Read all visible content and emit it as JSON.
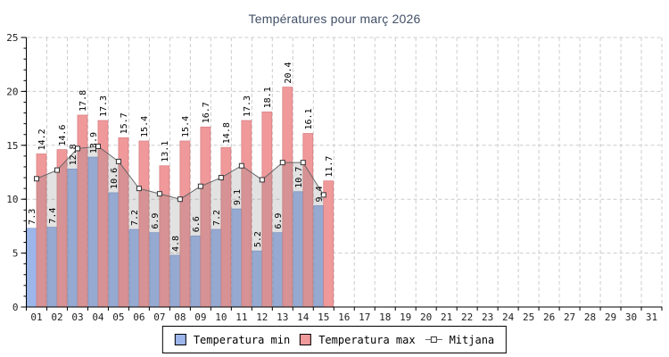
{
  "title": "Températures pour març 2026",
  "legend": {
    "min_label": "Temperatura min",
    "max_label": "Temperatura max",
    "mitjana_label": "Mitjana"
  },
  "colors": {
    "min_bar": "#9db6ea",
    "min_bar_border": "#7e9bd2",
    "max_bar": "#f0999b",
    "max_bar_border": "#d87f82",
    "mitjana_line": "#666666",
    "mitjana_marker_fill": "#ffffff",
    "mitjana_marker_border": "#333333",
    "area_fill": "rgba(125,125,125,0.22)",
    "grid": "#cccccc",
    "axis": "#000000",
    "tick_label": "#222222",
    "value_label": "#000000",
    "title": "#414f66"
  },
  "chart_data": {
    "type": "bar",
    "title": "Températures pour març 2026",
    "categories": [
      "01",
      "02",
      "03",
      "04",
      "05",
      "06",
      "07",
      "08",
      "09",
      "10",
      "11",
      "12",
      "13",
      "14",
      "15",
      "16",
      "17",
      "18",
      "19",
      "20",
      "21",
      "22",
      "23",
      "24",
      "25",
      "26",
      "27",
      "28",
      "29",
      "30",
      "31"
    ],
    "series": [
      {
        "name": "Temperatura min",
        "type": "bar",
        "values": [
          7.3,
          7.4,
          12.8,
          13.9,
          10.6,
          7.2,
          6.9,
          4.8,
          6.6,
          7.2,
          9.1,
          5.2,
          6.9,
          10.7,
          9.4
        ]
      },
      {
        "name": "Temperatura max",
        "type": "bar",
        "values": [
          14.2,
          14.6,
          17.8,
          17.3,
          15.7,
          15.4,
          13.1,
          15.4,
          16.7,
          14.8,
          17.3,
          18.1,
          20.4,
          16.1,
          11.7
        ]
      },
      {
        "name": "Mitjana",
        "type": "line-area",
        "values": [
          11.9,
          12.7,
          14.7,
          14.9,
          13.5,
          11.0,
          10.5,
          10.0,
          11.2,
          12.0,
          13.1,
          11.8,
          13.4,
          13.4,
          10.4
        ]
      }
    ],
    "xlabel": "",
    "ylabel": "",
    "ylim": [
      0,
      25
    ],
    "y_ticks": [
      0,
      5,
      10,
      15,
      20,
      25
    ],
    "grid": true,
    "legend_position": "bottom"
  }
}
